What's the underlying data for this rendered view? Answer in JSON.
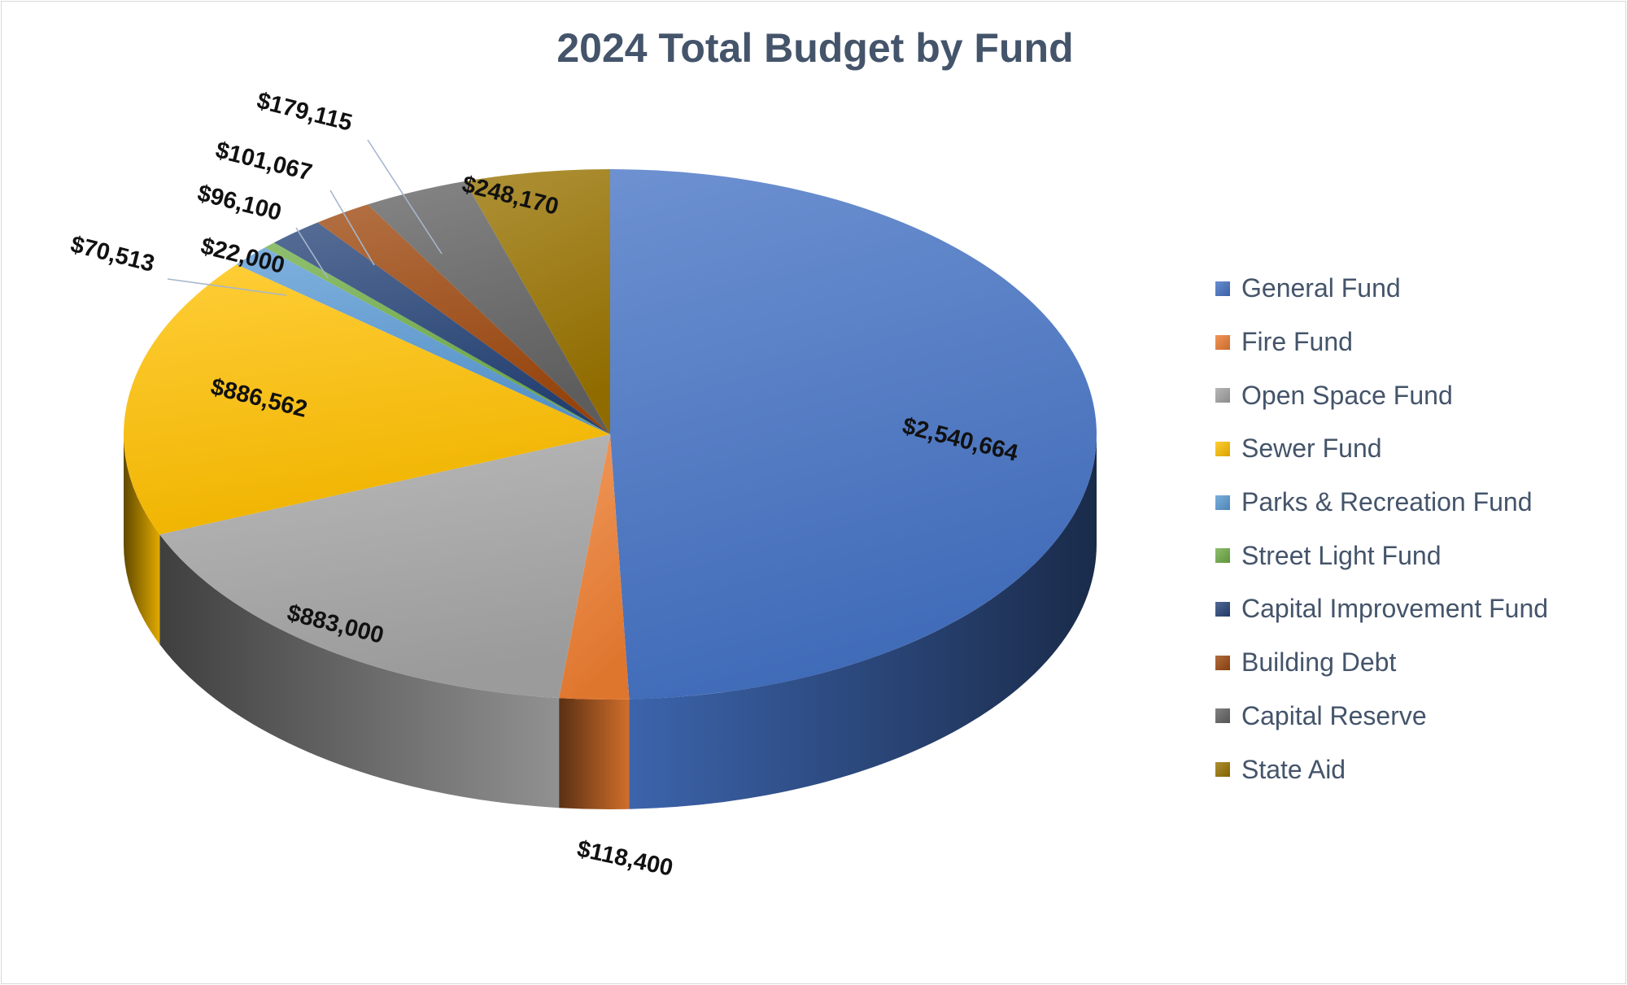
{
  "chart_data": {
    "type": "pie",
    "title": "2024 Total Budget by Fund",
    "legend_position": "right",
    "categories": [
      "General Fund",
      "Fire Fund",
      "Open Space Fund",
      "Sewer Fund",
      "Parks & Recreation Fund",
      "Street Light Fund",
      "Capital Improvement Fund",
      "Building Debt",
      "Capital Reserve",
      "State Aid"
    ],
    "values": [
      2540664,
      118400,
      883000,
      886562,
      70513,
      22000,
      96100,
      101067,
      179115,
      248170
    ],
    "labels": [
      "$2,540,664",
      "$118,400",
      "$883,000",
      "$886,562",
      "$70,513",
      "$22,000",
      "$96,100",
      "$101,067",
      "$179,115",
      "$248,170"
    ],
    "colors": [
      "#4472c4",
      "#ed7d31",
      "#a5a5a5",
      "#ffc000",
      "#5b9bd5",
      "#70ad47",
      "#264478",
      "#9e480e",
      "#636363",
      "#997300"
    ]
  }
}
